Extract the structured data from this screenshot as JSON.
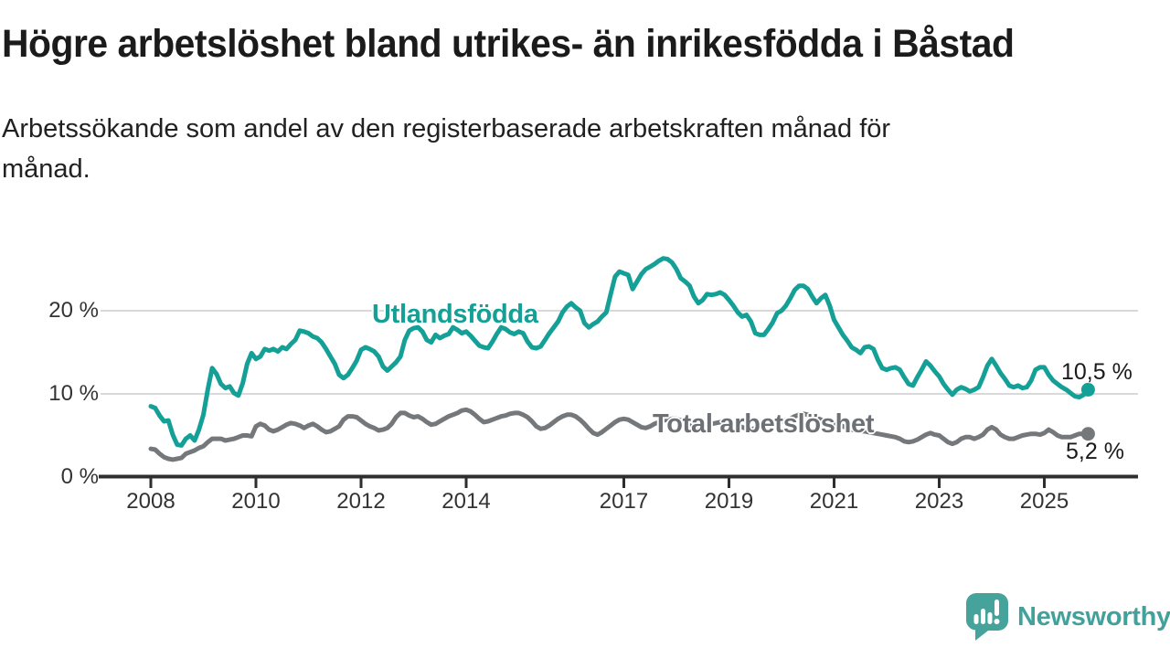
{
  "header": {
    "title": "Högre arbetslöshet bland utrikes- än inrikesfödda i Båstad",
    "subtitle": "Arbetssökande som andel av den registerbaserade arbetskraften månad för\nmånad."
  },
  "footer": {
    "brand": "Newsworthy",
    "logo_icon": "newsworthy-speech-bubble-bar-chart-icon",
    "brand_color": "#42a29b"
  },
  "colors": {
    "foreign_born_line": "#14a096",
    "total_line": "#75787b",
    "axis": "#2e2e2e",
    "gridline": "#d9d9d9",
    "text": "#1b1b1b"
  },
  "chart_data": {
    "type": "line",
    "title": "Högre arbetslöshet bland utrikes- än inrikesfödda i Båstad",
    "xlabel": "",
    "ylabel": "",
    "x_start_year": 2008,
    "x_months_per_point": 1,
    "x_tick_labels": [
      "2008",
      "2010",
      "2012",
      "2014",
      "2017",
      "2019",
      "2021",
      "2023",
      "2025"
    ],
    "x_tick_years": [
      2008,
      2010,
      2012,
      2014,
      2017,
      2019,
      2021,
      2023,
      2025
    ],
    "y_ticks": [
      {
        "value": 20,
        "label": "20 %"
      },
      {
        "value": 10,
        "label": "10 %"
      },
      {
        "value": 0,
        "label": "0 %"
      }
    ],
    "ylim": [
      0,
      28
    ],
    "grid": "horizontal",
    "legend": "inline-labels",
    "series": [
      {
        "name": "Utlandsfödda",
        "color": "#14a096",
        "end_label": "10,5 %",
        "end_value": 10.5,
        "values": [
          8.5,
          8.3,
          7.4,
          6.7,
          6.8,
          5.1,
          3.9,
          3.8,
          4.6,
          5.0,
          4.4,
          5.7,
          7.5,
          10.5,
          13.1,
          12.4,
          11.2,
          10.7,
          10.9,
          10.1,
          9.8,
          11.3,
          13.6,
          14.9,
          14.2,
          14.5,
          15.4,
          15.2,
          15.4,
          15.1,
          15.6,
          15.4,
          16.0,
          16.5,
          17.6,
          17.5,
          17.3,
          16.9,
          16.7,
          16.2,
          15.4,
          14.5,
          13.6,
          12.3,
          11.9,
          12.3,
          13.1,
          14.0,
          15.3,
          15.6,
          15.4,
          15.1,
          14.5,
          13.3,
          12.8,
          13.3,
          13.8,
          14.5,
          16.5,
          17.6,
          17.9,
          18.0,
          17.5,
          16.5,
          16.2,
          17.1,
          16.7,
          17.0,
          17.2,
          18.0,
          17.7,
          17.3,
          17.5,
          17.0,
          16.4,
          15.8,
          15.6,
          15.5,
          16.3,
          17.2,
          18.0,
          17.8,
          17.4,
          17.2,
          17.5,
          17.3,
          16.3,
          15.6,
          15.5,
          15.7,
          16.5,
          17.3,
          18.0,
          18.7,
          19.8,
          20.5,
          20.9,
          20.4,
          20.0,
          18.5,
          18.0,
          18.4,
          18.7,
          19.3,
          19.8,
          22.0,
          24.1,
          24.7,
          24.5,
          24.3,
          22.6,
          23.5,
          24.4,
          25.0,
          25.3,
          25.6,
          26.0,
          26.3,
          26.2,
          25.8,
          25.0,
          23.9,
          23.5,
          23.0,
          21.7,
          20.9,
          21.3,
          22.0,
          21.9,
          22.0,
          22.2,
          21.9,
          21.3,
          20.6,
          19.8,
          19.3,
          19.5,
          18.7,
          17.3,
          17.1,
          17.1,
          17.8,
          18.6,
          19.7,
          20.0,
          20.6,
          21.5,
          22.5,
          23.0,
          23.0,
          22.6,
          21.7,
          20.9,
          21.5,
          21.9,
          20.6,
          18.9,
          18.0,
          17.1,
          16.4,
          15.6,
          15.3,
          14.9,
          15.6,
          15.7,
          15.4,
          14.1,
          13.1,
          12.9,
          13.1,
          13.2,
          12.9,
          12.0,
          11.2,
          11.0,
          12.0,
          12.9,
          13.9,
          13.4,
          12.7,
          12.1,
          11.2,
          10.5,
          9.9,
          10.5,
          10.8,
          10.6,
          10.3,
          10.5,
          10.8,
          12.0,
          13.4,
          14.2,
          13.4,
          12.5,
          11.8,
          11.0,
          10.8,
          11.0,
          10.7,
          10.8,
          11.6,
          12.9,
          13.2,
          13.2,
          12.3,
          11.6,
          11.2,
          10.8,
          10.5,
          10.1,
          9.7,
          9.6,
          9.9,
          10.5
        ]
      },
      {
        "name": "Total arbetslöshet",
        "color": "#75787b",
        "end_label": "5,2 %",
        "end_value": 5.2,
        "values": [
          3.4,
          3.3,
          2.8,
          2.4,
          2.2,
          2.1,
          2.2,
          2.3,
          2.8,
          3.0,
          3.2,
          3.5,
          3.7,
          4.2,
          4.6,
          4.6,
          4.6,
          4.4,
          4.5,
          4.6,
          4.8,
          5.0,
          5.0,
          4.9,
          6.1,
          6.4,
          6.2,
          5.7,
          5.5,
          5.7,
          6.0,
          6.3,
          6.5,
          6.4,
          6.2,
          5.9,
          6.2,
          6.4,
          6.1,
          5.7,
          5.4,
          5.5,
          5.8,
          6.1,
          6.9,
          7.3,
          7.3,
          7.2,
          6.8,
          6.4,
          6.1,
          5.9,
          5.6,
          5.7,
          5.9,
          6.4,
          7.2,
          7.7,
          7.7,
          7.4,
          7.2,
          7.3,
          7.0,
          6.6,
          6.3,
          6.4,
          6.7,
          7.0,
          7.3,
          7.5,
          7.7,
          8.0,
          8.1,
          7.9,
          7.5,
          7.0,
          6.6,
          6.7,
          6.9,
          7.1,
          7.3,
          7.4,
          7.6,
          7.7,
          7.7,
          7.5,
          7.2,
          6.7,
          6.1,
          5.8,
          5.9,
          6.2,
          6.6,
          7.0,
          7.3,
          7.5,
          7.5,
          7.3,
          6.9,
          6.4,
          5.8,
          5.3,
          5.1,
          5.4,
          5.8,
          6.2,
          6.6,
          6.9,
          7.0,
          6.9,
          6.6,
          6.3,
          6.0,
          5.9,
          6.1,
          6.4,
          6.6,
          6.8,
          6.9,
          7.0,
          7.0,
          6.8,
          6.5,
          6.2,
          5.9,
          5.8,
          6.0,
          6.2,
          6.4,
          6.5,
          6.6,
          6.7,
          6.6,
          6.4,
          6.2,
          6.0,
          5.8,
          5.7,
          5.9,
          6.1,
          6.3,
          6.4,
          6.5,
          6.6,
          6.7,
          6.8,
          7.0,
          7.3,
          7.5,
          7.6,
          7.5,
          7.3,
          7.1,
          6.9,
          6.7,
          6.6,
          6.5,
          6.3,
          6.1,
          5.9,
          5.7,
          5.6,
          5.5,
          5.5,
          5.4,
          5.3,
          5.2,
          5.1,
          5.0,
          4.9,
          4.8,
          4.6,
          4.3,
          4.2,
          4.3,
          4.5,
          4.8,
          5.1,
          5.3,
          5.1,
          5.0,
          4.6,
          4.2,
          4.0,
          4.2,
          4.6,
          4.8,
          4.8,
          4.6,
          4.8,
          5.1,
          5.7,
          6.0,
          5.7,
          5.1,
          4.8,
          4.6,
          4.6,
          4.8,
          5.0,
          5.1,
          5.2,
          5.2,
          5.1,
          5.3,
          5.7,
          5.4,
          5.0,
          4.8,
          4.8,
          4.8,
          5.0,
          5.2,
          5.2,
          5.2
        ]
      }
    ]
  }
}
